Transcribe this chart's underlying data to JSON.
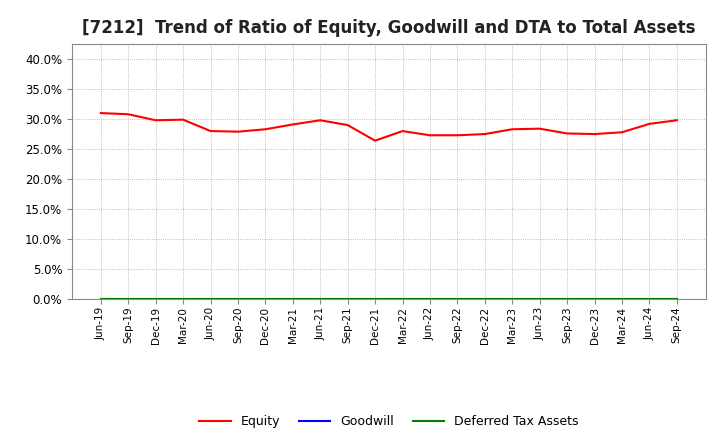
{
  "title": "[7212]  Trend of Ratio of Equity, Goodwill and DTA to Total Assets",
  "x_labels": [
    "Jun-19",
    "Sep-19",
    "Dec-19",
    "Mar-20",
    "Jun-20",
    "Sep-20",
    "Dec-20",
    "Mar-21",
    "Jun-21",
    "Sep-21",
    "Dec-21",
    "Mar-22",
    "Jun-22",
    "Sep-22",
    "Dec-22",
    "Mar-23",
    "Jun-23",
    "Sep-23",
    "Dec-23",
    "Mar-24",
    "Jun-24",
    "Sep-24"
  ],
  "equity": [
    0.31,
    0.308,
    0.298,
    0.299,
    0.28,
    0.279,
    0.283,
    0.291,
    0.298,
    0.29,
    0.264,
    0.28,
    0.273,
    0.273,
    0.275,
    0.283,
    0.284,
    0.276,
    0.275,
    0.278,
    0.292,
    0.298
  ],
  "goodwill": [
    0.0,
    0.0,
    0.0,
    0.0,
    0.0,
    0.0,
    0.0,
    0.0,
    0.0,
    0.0,
    0.0,
    0.0,
    0.0,
    0.0,
    0.0,
    0.0,
    0.0,
    0.0,
    0.0,
    0.0,
    0.0,
    0.0
  ],
  "dta": [
    0.0,
    0.0,
    0.0,
    0.0,
    0.0,
    0.0,
    0.0,
    0.0,
    0.0,
    0.0,
    0.0,
    0.0,
    0.0,
    0.0,
    0.0,
    0.0,
    0.0,
    0.0,
    0.0,
    0.0,
    0.0,
    0.0
  ],
  "equity_color": "#FF0000",
  "goodwill_color": "#0000FF",
  "dta_color": "#008000",
  "ylim": [
    0.0,
    0.425
  ],
  "yticks": [
    0.0,
    0.05,
    0.1,
    0.15,
    0.2,
    0.25,
    0.3,
    0.35,
    0.4
  ],
  "background_color": "#FFFFFF",
  "plot_bg_color": "#FFFFFF",
  "grid_color": "#AAAAAA",
  "title_fontsize": 12,
  "legend_labels": [
    "Equity",
    "Goodwill",
    "Deferred Tax Assets"
  ]
}
